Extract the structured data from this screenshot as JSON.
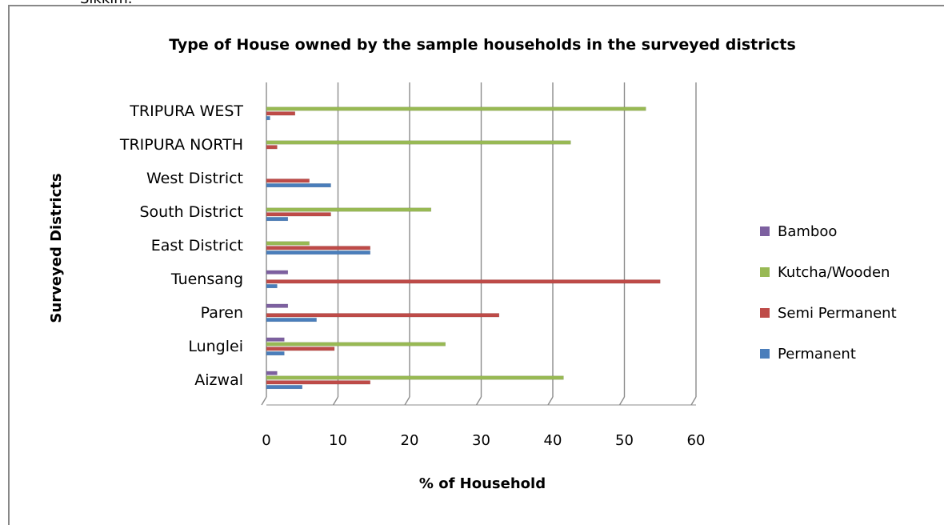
{
  "page": {
    "top_text": "Sikkim."
  },
  "chart_data": {
    "type": "bar",
    "orientation": "horizontal",
    "title": "Type of House owned by the sample households in the surveyed districts",
    "xlabel": "% of Household",
    "ylabel": "Surveyed Districts",
    "xlim": [
      0,
      60
    ],
    "xticks": [
      0,
      10,
      20,
      30,
      40,
      50,
      60
    ],
    "grid": "vertical",
    "legend_position": "right",
    "categories": [
      "Aizwal",
      "Lunglei",
      "Paren",
      "Tuensang",
      "East District",
      "South District",
      "West District",
      "TRIPURA NORTH",
      "TRIPURA WEST"
    ],
    "series": [
      {
        "name": "Permanent",
        "color": "#4a7ebb",
        "values": [
          5,
          2.5,
          7,
          1.5,
          14.5,
          3,
          9,
          0,
          0.5
        ]
      },
      {
        "name": "Semi Permanent",
        "color": "#be4b48",
        "values": [
          14.5,
          9.5,
          32.5,
          55,
          14.5,
          9,
          6,
          1.5,
          4
        ]
      },
      {
        "name": "Kutcha/Wooden",
        "color": "#98b954",
        "values": [
          41.5,
          25,
          0,
          0,
          6,
          23,
          0,
          42.5,
          53
        ]
      },
      {
        "name": "Bamboo",
        "color": "#7d60a0",
        "values": [
          1.5,
          2.5,
          3,
          3,
          0,
          0,
          0,
          0,
          0
        ]
      }
    ]
  }
}
